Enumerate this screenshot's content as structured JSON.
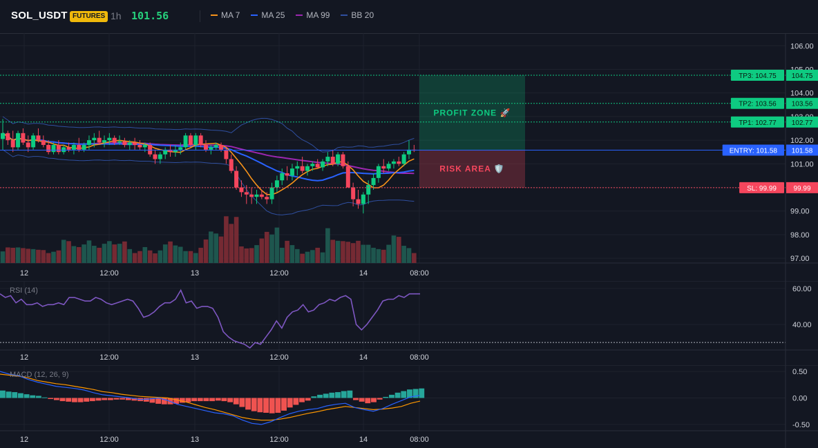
{
  "header": {
    "symbol": "SOL_USDT",
    "badge": "FUTURES",
    "timeframe": "1h",
    "last_price": "101.56",
    "legend": [
      {
        "label": "MA 7",
        "color": "#f7931a"
      },
      {
        "label": "MA 25",
        "color": "#2962ff"
      },
      {
        "label": "MA 99",
        "color": "#9c27b0"
      },
      {
        "label": "BB 20",
        "color": "#2f4fa0"
      }
    ]
  },
  "colors": {
    "up": "#0ecb81",
    "down": "#f6465d",
    "entry": "#2962ff",
    "tp": "#0ecb81",
    "sl": "#f6465d",
    "rsi": "#7e57c2",
    "macd": "#2962ff",
    "signal": "#ff9800"
  },
  "chart_data": [
    {
      "type": "candlestick",
      "symbol": "SOL_USDT",
      "ylim": [
        96.8,
        106.3
      ],
      "yticks": [
        "106.00",
        "105.00",
        "104.00",
        "103.00",
        "102.00",
        "101.00",
        "100.00",
        "99.00",
        "98.00",
        "97.00"
      ],
      "xticks": [
        "12",
        "12:00",
        "13",
        "12:00",
        "14",
        "08:00"
      ],
      "candles": [
        [
          102.05,
          102.9,
          101.6,
          102.3
        ],
        [
          102.3,
          102.4,
          101.8,
          102.0
        ],
        [
          102.0,
          102.4,
          101.5,
          101.7
        ],
        [
          101.7,
          102.4,
          101.6,
          102.3
        ],
        [
          102.3,
          102.5,
          101.8,
          101.9
        ],
        [
          101.9,
          102.2,
          101.5,
          101.7
        ],
        [
          101.7,
          102.3,
          101.6,
          102.2
        ],
        [
          102.2,
          102.5,
          101.9,
          102.0
        ],
        [
          102.0,
          102.2,
          101.7,
          101.8
        ],
        [
          101.8,
          102.0,
          101.4,
          101.5
        ],
        [
          101.5,
          101.9,
          101.4,
          101.8
        ],
        [
          101.8,
          102.0,
          101.4,
          101.5
        ],
        [
          101.5,
          101.8,
          101.4,
          101.7
        ],
        [
          101.7,
          101.9,
          101.5,
          101.6
        ],
        [
          101.6,
          101.9,
          101.4,
          101.8
        ],
        [
          101.8,
          102.1,
          101.5,
          101.6
        ],
        [
          101.6,
          101.9,
          101.5,
          101.8
        ],
        [
          101.8,
          102.2,
          101.6,
          102.0
        ],
        [
          102.0,
          102.3,
          101.7,
          102.1
        ],
        [
          102.1,
          102.4,
          101.8,
          101.9
        ],
        [
          101.9,
          102.2,
          101.7,
          102.0
        ],
        [
          102.0,
          102.3,
          101.8,
          102.1
        ],
        [
          102.1,
          102.2,
          101.8,
          101.9
        ],
        [
          101.9,
          102.2,
          101.8,
          101.95
        ],
        [
          101.95,
          102.1,
          101.7,
          101.8
        ],
        [
          101.8,
          102.0,
          101.6,
          101.9
        ],
        [
          101.9,
          102.1,
          101.6,
          101.8
        ],
        [
          101.8,
          102.0,
          101.6,
          101.7
        ],
        [
          101.7,
          101.9,
          101.5,
          101.8
        ],
        [
          101.8,
          101.9,
          101.3,
          101.4
        ],
        [
          101.4,
          101.6,
          101.0,
          101.2
        ],
        [
          101.2,
          101.5,
          101.0,
          101.4
        ],
        [
          101.4,
          101.7,
          101.2,
          101.6
        ],
        [
          101.6,
          101.8,
          101.3,
          101.5
        ],
        [
          101.5,
          101.8,
          101.3,
          101.6
        ],
        [
          101.6,
          101.9,
          101.4,
          101.7
        ],
        [
          101.7,
          102.3,
          101.6,
          102.2
        ],
        [
          102.2,
          102.3,
          101.7,
          101.8
        ],
        [
          101.8,
          102.3,
          101.6,
          102.2
        ],
        [
          102.2,
          102.3,
          101.7,
          101.8
        ],
        [
          101.8,
          102.0,
          101.5,
          101.6
        ],
        [
          101.6,
          101.8,
          101.4,
          101.7
        ],
        [
          101.7,
          101.9,
          101.6,
          101.8
        ],
        [
          101.8,
          101.9,
          101.5,
          101.6
        ],
        [
          101.6,
          101.7,
          101.0,
          101.2
        ],
        [
          101.2,
          101.4,
          100.6,
          100.7
        ],
        [
          100.7,
          100.9,
          99.9,
          100.0
        ],
        [
          100.0,
          100.3,
          99.6,
          99.8
        ],
        [
          99.8,
          100.1,
          99.3,
          99.7
        ],
        [
          99.7,
          100.0,
          99.3,
          99.6
        ],
        [
          99.6,
          99.9,
          99.3,
          99.7
        ],
        [
          99.7,
          99.9,
          99.5,
          99.6
        ],
        [
          99.6,
          99.8,
          99.3,
          99.5
        ],
        [
          99.5,
          100.2,
          99.3,
          100.0
        ],
        [
          100.0,
          100.5,
          99.8,
          100.3
        ],
        [
          100.3,
          100.8,
          100.1,
          100.6
        ],
        [
          100.6,
          100.9,
          100.3,
          100.5
        ],
        [
          100.5,
          101.0,
          100.3,
          100.8
        ],
        [
          100.8,
          101.1,
          100.5,
          100.9
        ],
        [
          100.9,
          101.3,
          100.6,
          100.7
        ],
        [
          100.7,
          101.0,
          100.5,
          100.9
        ],
        [
          100.9,
          101.1,
          100.7,
          101.0
        ],
        [
          101.0,
          101.2,
          100.8,
          100.85
        ],
        [
          100.85,
          101.2,
          100.7,
          101.1
        ],
        [
          101.1,
          101.5,
          100.9,
          101.3
        ],
        [
          101.3,
          101.6,
          100.9,
          101.0
        ],
        [
          101.0,
          101.5,
          100.9,
          101.4
        ],
        [
          101.4,
          101.5,
          100.8,
          100.9
        ],
        [
          100.9,
          101.1,
          100.0,
          100.0
        ],
        [
          100.0,
          100.2,
          99.2,
          99.5
        ],
        [
          99.5,
          99.9,
          99.1,
          99.3
        ],
        [
          99.3,
          99.8,
          98.9,
          99.7
        ],
        [
          99.7,
          100.3,
          99.3,
          100.1
        ],
        [
          100.1,
          100.6,
          99.9,
          100.4
        ],
        [
          100.4,
          101.0,
          100.2,
          100.9
        ],
        [
          100.9,
          101.2,
          100.6,
          100.8
        ],
        [
          100.8,
          101.1,
          100.7,
          101.0
        ],
        [
          101.0,
          101.2,
          100.8,
          101.1
        ],
        [
          101.1,
          101.3,
          100.9,
          101.0
        ],
        [
          101.0,
          101.5,
          100.9,
          101.4
        ],
        [
          101.4,
          102.0,
          101.2,
          101.6
        ],
        [
          101.6,
          101.8,
          101.5,
          101.56
        ]
      ],
      "volume": [
        0.35,
        0.47,
        0.46,
        0.47,
        0.45,
        0.43,
        0.42,
        0.4,
        0.39,
        0.3,
        0.34,
        0.38,
        0.7,
        0.66,
        0.51,
        0.48,
        0.56,
        0.68,
        0.52,
        0.46,
        0.58,
        0.66,
        0.56,
        0.58,
        0.65,
        0.42,
        0.3,
        0.36,
        0.48,
        0.38,
        0.29,
        0.38,
        0.56,
        0.65,
        0.53,
        0.49,
        0.36,
        0.36,
        0.3,
        0.46,
        0.71,
        0.95,
        0.89,
        0.8,
        1.41,
        1.18,
        1.39,
        0.5,
        0.44,
        0.45,
        0.54,
        0.74,
        0.94,
        0.86,
        1.07,
        0.46,
        0.67,
        0.54,
        0.42,
        0.28,
        0.34,
        0.39,
        0.46,
        0.32,
        1.05,
        0.7,
        0.67,
        0.66,
        0.64,
        0.6,
        0.67,
        0.55,
        0.55,
        0.46,
        0.42,
        0.4,
        0.55,
        0.83,
        0.79,
        0.52,
        0.45,
        0.3
      ],
      "indicators": {
        "ma7_end": 101.25,
        "ma25_end": 100.6,
        "ma99_end": 100.95
      },
      "trade": {
        "entry": {
          "label": "ENTRY: 101.58",
          "value": 101.58,
          "axis": "101.58"
        },
        "sl": {
          "label": "SL: 99.99",
          "value": 99.99,
          "axis": "99.99"
        },
        "tp1": {
          "label": "TP1: 102.77",
          "value": 102.77,
          "axis": "102.77"
        },
        "tp2": {
          "label": "TP2: 103.56",
          "value": 103.56,
          "axis": "103.56"
        },
        "tp3": {
          "label": "TP3: 104.75",
          "value": 104.75,
          "axis": "104.75"
        },
        "profit_zone": "PROFIT ZONE 🚀",
        "risk_area": "RISK AREA 🛡️"
      }
    },
    {
      "type": "line",
      "name": "RSI (14)",
      "ylim": [
        27,
        63
      ],
      "yticks": [
        "60.00",
        "40.00"
      ],
      "level": 30,
      "values": [
        57,
        55,
        56,
        52,
        54,
        51,
        51,
        52,
        50,
        51,
        51,
        52,
        51,
        55,
        55,
        54,
        53,
        53,
        55,
        54,
        52,
        51,
        52,
        53,
        54,
        53,
        49,
        44,
        45,
        47,
        50,
        52,
        52,
        54,
        59,
        52,
        53,
        49,
        50,
        50,
        49,
        44,
        36,
        33,
        31,
        30,
        29,
        27,
        30,
        29,
        33,
        37,
        42,
        38,
        44,
        47,
        48,
        51,
        47,
        48,
        51,
        52,
        54,
        53,
        55,
        56,
        54,
        40,
        37,
        40,
        44,
        48,
        53,
        54,
        54,
        56,
        55,
        57,
        57,
        57
      ]
    },
    {
      "type": "bar+line",
      "name": "MACD (12, 26, 9)",
      "ylim": [
        -0.58,
        0.58
      ],
      "yticks": [
        "0.50",
        "0.00",
        "-0.50"
      ],
      "hist": [
        0.14,
        0.12,
        0.11,
        0.09,
        0.07,
        0.05,
        0.04,
        0.01,
        -0.02,
        -0.04,
        -0.06,
        -0.07,
        -0.08,
        -0.08,
        -0.07,
        -0.06,
        -0.05,
        -0.04,
        -0.04,
        -0.03,
        -0.03,
        -0.04,
        -0.05,
        -0.06,
        -0.07,
        -0.09,
        -0.11,
        -0.12,
        -0.12,
        -0.11,
        -0.09,
        -0.08,
        -0.06,
        -0.06,
        -0.06,
        -0.06,
        -0.05,
        -0.06,
        -0.08,
        -0.12,
        -0.17,
        -0.22,
        -0.25,
        -0.27,
        -0.28,
        -0.29,
        -0.28,
        -0.24,
        -0.18,
        -0.13,
        -0.08,
        -0.05,
        0.03,
        0.06,
        0.08,
        0.1,
        0.11,
        0.13,
        0.14,
        -0.04,
        -0.07,
        -0.1,
        -0.08,
        -0.03,
        0.02,
        0.06,
        0.1,
        0.13,
        0.16,
        0.17,
        0.18
      ],
      "macd": [
        0.5,
        0.45,
        0.42,
        0.35,
        0.3,
        0.26,
        0.22,
        0.2,
        0.18,
        0.15,
        0.1,
        0.06,
        0.04,
        0.02,
        0.0,
        -0.03,
        -0.02,
        0.0,
        -0.05,
        -0.12,
        -0.16,
        -0.2,
        -0.24,
        -0.28,
        -0.3,
        -0.34,
        -0.42,
        -0.48,
        -0.5,
        -0.45,
        -0.37,
        -0.3,
        -0.25,
        -0.22,
        -0.2,
        -0.15,
        -0.12,
        -0.1,
        -0.18,
        -0.22,
        -0.25,
        -0.2,
        -0.12,
        -0.05,
        0.02,
        0.05
      ],
      "signal": [
        0.45,
        0.43,
        0.41,
        0.38,
        0.33,
        0.3,
        0.27,
        0.25,
        0.22,
        0.19,
        0.16,
        0.12,
        0.1,
        0.07,
        0.05,
        0.03,
        0.02,
        0.01,
        0.0,
        -0.04,
        -0.08,
        -0.13,
        -0.18,
        -0.22,
        -0.27,
        -0.32,
        -0.37,
        -0.4,
        -0.42,
        -0.42,
        -0.4,
        -0.37,
        -0.33,
        -0.29,
        -0.26,
        -0.22,
        -0.19,
        -0.16,
        -0.18,
        -0.2,
        -0.22,
        -0.21,
        -0.19,
        -0.16,
        -0.1,
        -0.06
      ]
    }
  ],
  "labels": {
    "rsi_title": "RSI (14)",
    "macd_title": "MACD (12, 26, 9)"
  }
}
